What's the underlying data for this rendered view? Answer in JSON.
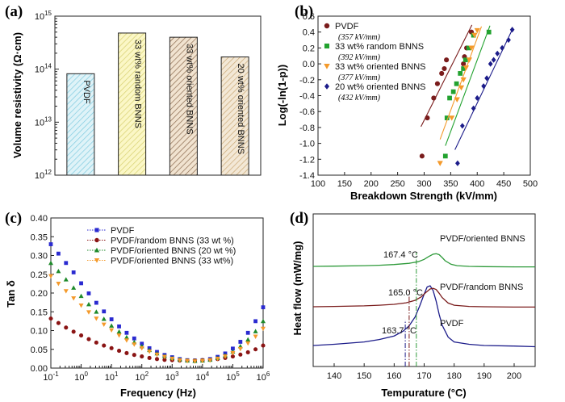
{
  "chart_data": [
    {
      "type": "bar",
      "panel_label": "(a)",
      "ylabel": "Volume resistivity  (Ω·cm)",
      "yscale": "log",
      "ylim": [
        1000000000000.0,
        1000000000000000.0
      ],
      "yticks": [
        {
          "value": 1000000000000.0,
          "base": "10",
          "exp": "12"
        },
        {
          "value": 10000000000000.0,
          "base": "10",
          "exp": "13"
        },
        {
          "value": 100000000000000.0,
          "base": "10",
          "exp": "14"
        },
        {
          "value": 1000000000000000.0,
          "base": "10",
          "exp": "15"
        }
      ],
      "categories": [
        "PVDF",
        "33 wt% random BNNS",
        "33 wt% oriented BNNS",
        "20 wt% oriented BNNS"
      ],
      "values": [
        82000000000000.0,
        480000000000000.0,
        400000000000000.0,
        170000000000000.0
      ],
      "bar_styles": [
        {
          "fill": "#dff3f8",
          "hatch": "#7fcbe0"
        },
        {
          "fill": "#fbf7c6",
          "hatch": "#d7d070"
        },
        {
          "fill": "#f1e3d0",
          "hatch": "#8a6a4e"
        },
        {
          "fill": "#f3e8d6",
          "hatch": "#c9a874"
        }
      ]
    },
    {
      "type": "scatter",
      "panel_label": "(b)",
      "xlabel": "Breakdown Strength (kV/mm)",
      "ylabel": "Log(-ln(1-p))",
      "xlim": [
        100,
        500
      ],
      "ylim": [
        -1.4,
        0.6
      ],
      "xticks": [
        100,
        150,
        200,
        250,
        300,
        350,
        400,
        450,
        500
      ],
      "yticks": [
        "0.6",
        "0.4",
        "0.2",
        "0.0",
        "-0.2",
        "-0.4",
        "-0.6",
        "-0.8",
        "-1.0",
        "-1.2",
        "-1.4"
      ],
      "series": [
        {
          "name": "PVDF",
          "annotation": "(357 kV/mm)",
          "color": "#7a1c1c",
          "marker": "circle",
          "points": [
            [
              296,
              -1.16
            ],
            [
              306,
              -0.68
            ],
            [
              318,
              -0.43
            ],
            [
              325,
              -0.25
            ],
            [
              333,
              -0.12
            ],
            [
              338,
              -0.06
            ],
            [
              342,
              0.05
            ],
            [
              374,
              0.0
            ],
            [
              376,
              0.09
            ],
            [
              380,
              0.2
            ],
            [
              389,
              0.4
            ]
          ],
          "fit": [
            [
              294,
              -0.79
            ],
            [
              390,
              0.49
            ]
          ]
        },
        {
          "name": "33 wt% random BNNS",
          "annotation": "(392 kV/mm)",
          "color": "#22a22f",
          "marker": "square",
          "points": [
            [
              340,
              -1.16
            ],
            [
              343,
              -0.68
            ],
            [
              348,
              -0.43
            ],
            [
              355,
              -0.35
            ],
            [
              361,
              -0.25
            ],
            [
              368,
              -0.12
            ],
            [
              374,
              -0.06
            ],
            [
              378,
              0.05
            ],
            [
              384,
              0.2
            ],
            [
              393,
              0.36
            ],
            [
              422,
              0.4
            ]
          ],
          "fit": [
            [
              340,
              -1.03
            ],
            [
              424,
              0.48
            ]
          ]
        },
        {
          "name": "33 wt% oriented BNNS",
          "annotation": "(377 kV/mm)",
          "color": "#f49a2b",
          "marker": "triangle-down",
          "points": [
            [
              330,
              -1.25
            ],
            [
              352,
              -0.68
            ],
            [
              362,
              -0.45
            ],
            [
              370,
              -0.3
            ],
            [
              374,
              -0.2
            ],
            [
              379,
              -0.05
            ],
            [
              385,
              0.05
            ],
            [
              389,
              0.2
            ],
            [
              395,
              0.36
            ],
            [
              400,
              0.42
            ]
          ],
          "fit": [
            [
              330,
              -0.95
            ],
            [
              408,
              0.47
            ]
          ]
        },
        {
          "name": "20 wt% oriented BNNS",
          "annotation": "(432 kV/mm)",
          "color": "#1c1c8a",
          "marker": "diamond",
          "points": [
            [
              363,
              -1.25
            ],
            [
              372,
              -0.78
            ],
            [
              393,
              -0.56
            ],
            [
              400,
              -0.43
            ],
            [
              412,
              -0.28
            ],
            [
              418,
              -0.18
            ],
            [
              425,
              0.0
            ],
            [
              431,
              0.05
            ],
            [
              438,
              0.13
            ],
            [
              447,
              0.2
            ],
            [
              459,
              0.3
            ],
            [
              466,
              0.43
            ]
          ],
          "fit": [
            [
              358,
              -1.08
            ],
            [
              466,
              0.43
            ]
          ]
        }
      ]
    },
    {
      "type": "line",
      "panel_label": "(c)",
      "xlabel": "Frequency (Hz)",
      "ylabel": "Tan δ",
      "xscale": "log",
      "xlim": [
        0.1,
        1000000
      ],
      "ylim": [
        0.0,
        0.4
      ],
      "xticks": [
        {
          "value": 0.1,
          "base": "10",
          "exp": "-1"
        },
        {
          "value": 1,
          "base": "10",
          "exp": "0"
        },
        {
          "value": 10,
          "base": "10",
          "exp": "1"
        },
        {
          "value": 100,
          "base": "10",
          "exp": "2"
        },
        {
          "value": 1000,
          "base": "10",
          "exp": "3"
        },
        {
          "value": 10000,
          "base": "10",
          "exp": "4"
        },
        {
          "value": 100000,
          "base": "10",
          "exp": "5"
        },
        {
          "value": 1000000,
          "base": "10",
          "exp": "6"
        }
      ],
      "yticks": [
        "0.00",
        "0.05",
        "0.10",
        "0.15",
        "0.20",
        "0.25",
        "0.30",
        "0.35",
        "0.40"
      ],
      "series": [
        {
          "name": "PVDF",
          "color": "#2a2ad0",
          "marker": "square",
          "x": [
            0.1,
            0.178,
            0.316,
            0.562,
            1,
            1.78,
            3.16,
            5.62,
            10,
            17.8,
            31.6,
            56.2,
            100,
            178,
            316,
            562,
            1000,
            1780,
            3160,
            5620,
            10000,
            17800,
            31600,
            56200,
            100000,
            178000,
            316000,
            562000,
            1000000
          ],
          "y": [
            0.33,
            0.305,
            0.28,
            0.255,
            0.226,
            0.199,
            0.174,
            0.151,
            0.13,
            0.111,
            0.094,
            0.079,
            0.065,
            0.053,
            0.043,
            0.035,
            0.029,
            0.024,
            0.021,
            0.02,
            0.021,
            0.024,
            0.03,
            0.039,
            0.052,
            0.07,
            0.094,
            0.125,
            0.162
          ]
        },
        {
          "name": "PVDF/random BNNS  (33 wt %)",
          "color": "#8a1414",
          "marker": "circle",
          "x": [
            0.1,
            0.178,
            0.316,
            0.562,
            1,
            1.78,
            3.16,
            5.62,
            10,
            17.8,
            31.6,
            56.2,
            100,
            178,
            316,
            562,
            1000,
            1780,
            3160,
            5620,
            10000,
            17800,
            31600,
            56200,
            100000,
            178000,
            316000,
            562000,
            1000000
          ],
          "y": [
            0.132,
            0.12,
            0.108,
            0.097,
            0.087,
            0.077,
            0.068,
            0.06,
            0.053,
            0.046,
            0.04,
            0.035,
            0.031,
            0.027,
            0.024,
            0.022,
            0.021,
            0.02,
            0.02,
            0.02,
            0.021,
            0.022,
            0.024,
            0.027,
            0.031,
            0.036,
            0.042,
            0.05,
            0.06
          ]
        },
        {
          "name": "PVDF/oriented BNNS (20 wt %)",
          "color": "#1e8a2a",
          "marker": "triangle-up",
          "x": [
            0.1,
            0.178,
            0.316,
            0.562,
            1,
            1.78,
            3.16,
            5.62,
            10,
            17.8,
            31.6,
            56.2,
            100,
            178,
            316,
            562,
            1000,
            1780,
            3160,
            5620,
            10000,
            17800,
            31600,
            56200,
            100000,
            178000,
            316000,
            562000,
            1000000
          ],
          "y": [
            0.28,
            0.258,
            0.236,
            0.214,
            0.192,
            0.17,
            0.15,
            0.131,
            0.113,
            0.097,
            0.082,
            0.069,
            0.058,
            0.048,
            0.039,
            0.032,
            0.027,
            0.023,
            0.02,
            0.019,
            0.02,
            0.022,
            0.027,
            0.034,
            0.044,
            0.058,
            0.076,
            0.098,
            0.125
          ]
        },
        {
          "name": "PVDF/oriented BNNS (33 wt%)",
          "color": "#f49a2b",
          "marker": "triangle-down",
          "x": [
            0.1,
            0.178,
            0.316,
            0.562,
            1,
            1.78,
            3.16,
            5.62,
            10,
            17.8,
            31.6,
            56.2,
            100,
            178,
            316,
            562,
            1000,
            1780,
            3160,
            5620,
            10000,
            17800,
            31600,
            56200,
            100000,
            178000,
            316000,
            562000,
            1000000
          ],
          "y": [
            0.245,
            0.225,
            0.205,
            0.186,
            0.167,
            0.149,
            0.132,
            0.116,
            0.101,
            0.087,
            0.074,
            0.063,
            0.053,
            0.044,
            0.036,
            0.03,
            0.025,
            0.021,
            0.019,
            0.018,
            0.019,
            0.021,
            0.025,
            0.031,
            0.04,
            0.051,
            0.066,
            0.084,
            0.105
          ]
        }
      ]
    },
    {
      "type": "line",
      "panel_label": "(d)",
      "xlabel": "Tempurature (°C)",
      "ylabel": "Heat flow (mW/mg)",
      "xlim": [
        133,
        207
      ],
      "xticks": [
        140,
        150,
        160,
        170,
        180,
        190,
        200
      ],
      "series": [
        {
          "name": "PVDF",
          "annotation": "163.7 °C",
          "peak": 163.7,
          "color": "#1c1c8a",
          "marker_line": "dashdot",
          "x": [
            133,
            140,
            150,
            155,
            160,
            163,
            165,
            167,
            168.5,
            170,
            171,
            172,
            173,
            174,
            175,
            176,
            178,
            180,
            185,
            190,
            200,
            207
          ],
          "y": [
            0.0,
            0.02,
            0.06,
            0.1,
            0.16,
            0.24,
            0.33,
            0.48,
            0.66,
            0.86,
            0.98,
            1.0,
            0.92,
            0.74,
            0.52,
            0.34,
            0.14,
            0.06,
            0.02,
            0.0,
            -0.01,
            -0.02
          ]
        },
        {
          "name": "PVDF/random BNNS",
          "annotation": "165.0 °C",
          "peak": 165.0,
          "color": "#7a1c1c",
          "marker_line": "dashdot",
          "x": [
            133,
            140,
            150,
            155,
            160,
            164,
            167,
            169,
            170.5,
            172,
            173,
            174,
            175,
            176,
            178,
            180,
            185,
            190,
            200,
            207
          ],
          "y": [
            0.0,
            0.01,
            0.03,
            0.05,
            0.08,
            0.13,
            0.21,
            0.32,
            0.46,
            0.58,
            0.6,
            0.56,
            0.44,
            0.3,
            0.12,
            0.05,
            0.01,
            0.0,
            -0.01,
            -0.01
          ]
        },
        {
          "name": "PVDF/oriented BNNS",
          "annotation": "167.4 °C",
          "peak": 167.4,
          "color": "#2e9a3a",
          "marker_line": "dashdot",
          "x": [
            133,
            140,
            150,
            155,
            160,
            165,
            168,
            170,
            171.5,
            173,
            174,
            175,
            176,
            177,
            179,
            181,
            185,
            190,
            200,
            207
          ],
          "y": [
            0.0,
            0.01,
            0.03,
            0.05,
            0.08,
            0.13,
            0.2,
            0.3,
            0.42,
            0.52,
            0.54,
            0.5,
            0.38,
            0.24,
            0.09,
            0.03,
            0.0,
            -0.01,
            -0.02,
            -0.02
          ]
        }
      ]
    }
  ]
}
